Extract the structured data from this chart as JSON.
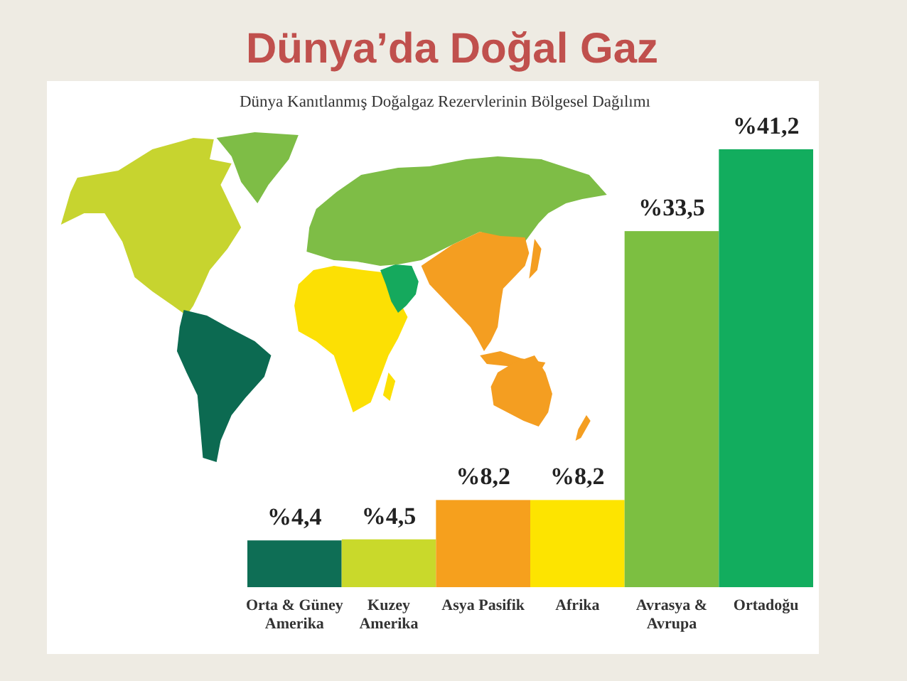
{
  "chart_data": {
    "type": "bar",
    "title": "Dünya’da Doğal Gaz",
    "subtitle": "Dünya Kanıtlanmış Doğalgaz Rezervlerinin Bölgesel Dağılımı",
    "categories": [
      "Orta & Güney\nAmerika",
      "Kuzey\nAmerika",
      "Asya Pasifik",
      "Afrika",
      "Avrasya &\nAvrupa",
      "Ortadoğu"
    ],
    "values": [
      4.4,
      4.5,
      8.2,
      8.2,
      33.5,
      41.2
    ],
    "colors": [
      "#0e6e55",
      "#c9d92b",
      "#f6a01d",
      "#fde400",
      "#7cbf41",
      "#12ad5e"
    ],
    "value_labels": [
      "%4,4",
      "%4,5",
      "%8,2",
      "%8,2",
      "%33,5",
      "%41,2"
    ]
  }
}
